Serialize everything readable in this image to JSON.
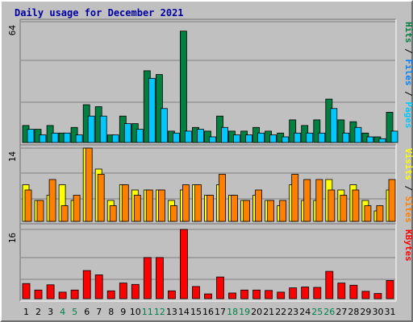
{
  "colors": {
    "background": "#c0c0c0",
    "title": "#0000a0",
    "hits": "#008040",
    "files": "#0080ff",
    "pages": "#00c8ff",
    "visits": "#ffff00",
    "sites": "#ff8000",
    "kbytes": "#ff0000",
    "weekend_label": "#00804a",
    "grid": "#808080"
  },
  "chart_data": [
    {
      "type": "bar",
      "title": "Daily usage for December 2021",
      "ylabel_parts": [
        {
          "text": "Hits",
          "color_key": "hits"
        },
        {
          "text": "Files",
          "color_key": "files"
        },
        {
          "text": "Pages",
          "color_key": "pages"
        }
      ],
      "ylabel_sep": " / ",
      "ymax_label": "64",
      "ylim": [
        0,
        64
      ],
      "categories": [
        "1",
        "2",
        "3",
        "4",
        "5",
        "6",
        "7",
        "8",
        "9",
        "10",
        "11",
        "12",
        "13",
        "14",
        "15",
        "16",
        "17",
        "18",
        "19",
        "20",
        "21",
        "22",
        "23",
        "24",
        "25",
        "26",
        "27",
        "28",
        "29",
        "30",
        "31"
      ],
      "weekend_days": [
        "4",
        "5",
        "11",
        "12",
        "18",
        "19",
        "25",
        "26"
      ],
      "series": [
        {
          "name": "Hits",
          "color_key": "hits",
          "values": [
            9,
            7,
            9,
            5,
            8,
            20,
            19,
            4,
            14,
            10,
            38,
            36,
            6,
            59,
            8,
            6,
            14,
            6,
            6,
            8,
            6,
            5,
            12,
            9,
            12,
            23,
            12,
            11,
            5,
            3,
            16
          ]
        },
        {
          "name": "Files",
          "color_key": "files",
          "values": [
            0,
            0,
            0,
            0,
            0,
            0,
            0,
            0,
            0,
            0,
            0,
            0,
            0,
            0,
            0,
            0,
            0,
            0,
            0,
            0,
            0,
            0,
            0,
            0,
            0,
            0,
            0,
            0,
            0,
            0,
            0
          ]
        },
        {
          "name": "Pages",
          "color_key": "pages",
          "values": [
            7,
            4,
            5,
            5,
            4,
            14,
            14,
            4,
            10,
            7,
            34,
            18,
            5,
            6,
            7,
            3,
            8,
            4,
            4,
            5,
            4,
            3,
            5,
            5,
            5,
            18,
            5,
            8,
            3,
            2,
            6
          ]
        }
      ]
    },
    {
      "type": "bar",
      "ylabel_parts": [
        {
          "text": "Visits",
          "color_key": "visits"
        },
        {
          "text": "Sites",
          "color_key": "sites"
        }
      ],
      "ylabel_sep": " / ",
      "ymax_label": "14",
      "ylim": [
        0,
        14
      ],
      "categories": [
        "1",
        "2",
        "3",
        "4",
        "5",
        "6",
        "7",
        "8",
        "9",
        "10",
        "11",
        "12",
        "13",
        "14",
        "15",
        "16",
        "17",
        "18",
        "19",
        "20",
        "21",
        "22",
        "23",
        "24",
        "25",
        "26",
        "27",
        "28",
        "29",
        "30",
        "31"
      ],
      "series": [
        {
          "name": "Visits",
          "color_key": "visits",
          "values": [
            7,
            4,
            5,
            7,
            4,
            14,
            10,
            4,
            7,
            6,
            6,
            6,
            4,
            6,
            7,
            5,
            7,
            5,
            4,
            5,
            4,
            3,
            7,
            4,
            4,
            8,
            6,
            7,
            4,
            2,
            6
          ]
        },
        {
          "name": "Sites",
          "color_key": "sites",
          "values": [
            6,
            4,
            8,
            3,
            5,
            14,
            9,
            3,
            7,
            5,
            6,
            6,
            3,
            7,
            7,
            5,
            9,
            5,
            4,
            6,
            4,
            4,
            9,
            8,
            8,
            6,
            5,
            6,
            3,
            3,
            8
          ]
        }
      ]
    },
    {
      "type": "bar",
      "ylabel_parts": [
        {
          "text": "KBytes",
          "color_key": "kbytes"
        }
      ],
      "ylabel_sep": " / ",
      "ymax_label": "16",
      "ylim": [
        0,
        16
      ],
      "categories": [
        "1",
        "2",
        "3",
        "4",
        "5",
        "6",
        "7",
        "8",
        "9",
        "10",
        "11",
        "12",
        "13",
        "14",
        "15",
        "16",
        "17",
        "18",
        "19",
        "20",
        "21",
        "22",
        "23",
        "24",
        "25",
        "26",
        "27",
        "28",
        "29",
        "30",
        "31"
      ],
      "series": [
        {
          "name": "KBytes",
          "color_key": "kbytes",
          "values": [
            3.5,
            2,
            3.2,
            1.5,
            2,
            6.5,
            5.5,
            1.8,
            3.6,
            3.3,
            9.5,
            9.5,
            1.8,
            16,
            2.8,
            1.1,
            5,
            1.3,
            2,
            2,
            1.9,
            1.5,
            2.5,
            2.7,
            2.6,
            6.3,
            3.6,
            3.1,
            1.7,
            1.2,
            4.2
          ]
        }
      ]
    }
  ]
}
